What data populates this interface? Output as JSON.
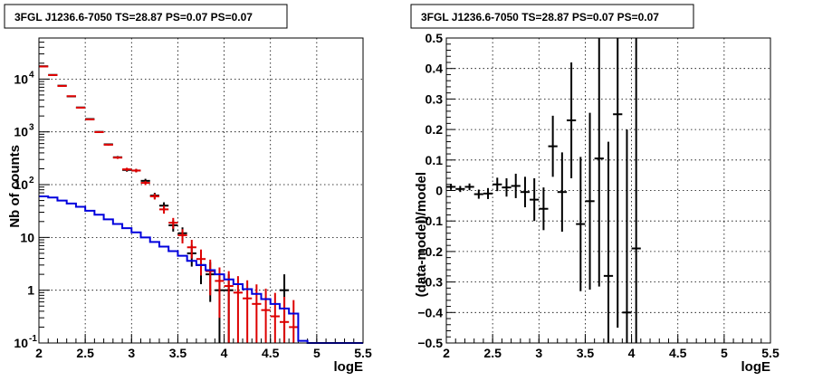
{
  "chart_data": [
    {
      "type": "histogram",
      "title": "3FGL J1236.6-7050 TS=28.87 PS=0.07 PS=0.07",
      "xlabel": "logE",
      "ylabel": "Nb of counts",
      "xlim": [
        2,
        5.5
      ],
      "ylim": [
        0.1,
        60000
      ],
      "yscale": "log",
      "grid": true,
      "x_ticks": [
        "2",
        "2.5",
        "3",
        "3.5",
        "4",
        "4.5",
        "5",
        "5.5"
      ],
      "y_ticks": [
        {
          "value": 0.1,
          "label": "10",
          "sup": "-1"
        },
        {
          "value": 1,
          "label": "1",
          "sup": ""
        },
        {
          "value": 10,
          "label": "10",
          "sup": ""
        },
        {
          "value": 100,
          "label": "10",
          "sup": "2"
        },
        {
          "value": 1000,
          "label": "10",
          "sup": "3"
        },
        {
          "value": 10000,
          "label": "10",
          "sup": "4"
        }
      ],
      "bin_width": 0.1,
      "series": [
        {
          "role": "data",
          "color": "#000000",
          "points": [
            {
              "x": 2.05,
              "y": 17500,
              "err": 130
            },
            {
              "x": 2.15,
              "y": 12000,
              "err": 110
            },
            {
              "x": 2.25,
              "y": 7500,
              "err": 87
            },
            {
              "x": 2.35,
              "y": 4700,
              "err": 69
            },
            {
              "x": 2.45,
              "y": 2900,
              "err": 54
            },
            {
              "x": 2.55,
              "y": 1750,
              "err": 42
            },
            {
              "x": 2.65,
              "y": 1000,
              "err": 32
            },
            {
              "x": 2.75,
              "y": 580,
              "err": 24
            },
            {
              "x": 2.85,
              "y": 330,
              "err": 18
            },
            {
              "x": 2.95,
              "y": 190,
              "err": 14
            },
            {
              "x": 3.05,
              "y": 185,
              "err": 14
            },
            {
              "x": 3.15,
              "y": 118,
              "err": 11
            },
            {
              "x": 3.25,
              "y": 62,
              "err": 8
            },
            {
              "x": 3.35,
              "y": 40,
              "err": 6.3
            },
            {
              "x": 3.45,
              "y": 17,
              "err": 4.1
            },
            {
              "x": 3.55,
              "y": 12,
              "err": 3.5
            },
            {
              "x": 3.65,
              "y": 5,
              "err": 2.2
            },
            {
              "x": 3.75,
              "y": 3,
              "err": 1.7
            },
            {
              "x": 3.85,
              "y": 2,
              "err": 1.4
            },
            {
              "x": 3.95,
              "y": 1,
              "err": 1
            },
            {
              "x": 4.05,
              "y": 1,
              "err": 1
            },
            {
              "x": 4.65,
              "y": 1,
              "err": 1
            }
          ]
        },
        {
          "role": "model",
          "color": "#dd0000",
          "points": [
            {
              "x": 2.05,
              "y": 17300,
              "err": 130
            },
            {
              "x": 2.15,
              "y": 11900,
              "err": 110
            },
            {
              "x": 2.25,
              "y": 7400,
              "err": 87
            },
            {
              "x": 2.35,
              "y": 4750,
              "err": 69
            },
            {
              "x": 2.45,
              "y": 2870,
              "err": 54
            },
            {
              "x": 2.55,
              "y": 1720,
              "err": 42
            },
            {
              "x": 2.65,
              "y": 990,
              "err": 32
            },
            {
              "x": 2.75,
              "y": 570,
              "err": 24
            },
            {
              "x": 2.85,
              "y": 325,
              "err": 18
            },
            {
              "x": 2.95,
              "y": 195,
              "err": 14
            },
            {
              "x": 3.05,
              "y": 185,
              "err": 14
            },
            {
              "x": 3.15,
              "y": 108,
              "err": 10
            },
            {
              "x": 3.25,
              "y": 60,
              "err": 7.7
            },
            {
              "x": 3.35,
              "y": 34,
              "err": 5.8
            },
            {
              "x": 3.45,
              "y": 19,
              "err": 4.4
            },
            {
              "x": 3.55,
              "y": 11,
              "err": 3.3
            },
            {
              "x": 3.65,
              "y": 6.5,
              "err": 2.5
            },
            {
              "x": 3.75,
              "y": 3.9,
              "err": 2
            },
            {
              "x": 3.85,
              "y": 2.3,
              "err": 1.5
            },
            {
              "x": 3.95,
              "y": 1.5,
              "err": 1.2
            },
            {
              "x": 4.05,
              "y": 1.2,
              "err": 1.1
            },
            {
              "x": 4.15,
              "y": 0.9,
              "err": 0.95
            },
            {
              "x": 4.25,
              "y": 0.7,
              "err": 0.84
            },
            {
              "x": 4.35,
              "y": 0.55,
              "err": 0.74
            },
            {
              "x": 4.45,
              "y": 0.42,
              "err": 0.65
            },
            {
              "x": 4.55,
              "y": 0.32,
              "err": 0.57
            },
            {
              "x": 4.65,
              "y": 0.25,
              "err": 0.5
            },
            {
              "x": 4.75,
              "y": 0.2,
              "err": 0.45
            }
          ]
        },
        {
          "role": "source",
          "color": "#0000dd",
          "step": true,
          "x_edges": [
            2.0,
            2.1,
            2.2,
            2.3,
            2.4,
            2.5,
            2.6,
            2.7,
            2.8,
            2.9,
            3.0,
            3.1,
            3.2,
            3.3,
            3.4,
            3.5,
            3.6,
            3.7,
            3.8,
            3.9,
            4.0,
            4.1,
            4.2,
            4.3,
            4.4,
            4.5,
            4.6,
            4.7,
            4.8,
            4.9,
            5.0,
            5.1,
            5.2,
            5.3,
            5.4,
            5.5
          ],
          "values": [
            60,
            57,
            50,
            44,
            38,
            32,
            27,
            22,
            18,
            15,
            12.5,
            10,
            8.2,
            6.7,
            5.5,
            4.5,
            3.6,
            3.0,
            2.4,
            2.0,
            1.6,
            1.3,
            1.05,
            0.85,
            0.68,
            0.55,
            0.45,
            0.36,
            0.11,
            0.1,
            0.1,
            0.1,
            0.1,
            0.1,
            0.1
          ]
        }
      ]
    },
    {
      "type": "scatter",
      "title": "3FGL J1236.6-7050 TS=28.87 PS=0.07 PS=0.07",
      "xlabel": "logE",
      "ylabel": "(data-model)/model",
      "xlim": [
        2,
        5.5
      ],
      "ylim": [
        -0.5,
        0.5
      ],
      "grid": true,
      "x_ticks": [
        "2",
        "2.5",
        "3",
        "3.5",
        "4",
        "4.5",
        "5",
        "5.5"
      ],
      "y_ticks": [
        "−0.5",
        "−0.4",
        "−0.3",
        "−0.2",
        "−0.1",
        "0",
        "0.1",
        "0.2",
        "0.3",
        "0.4",
        "0.5"
      ],
      "bin_width": 0.1,
      "points": [
        {
          "x": 2.05,
          "y": 0.012,
          "err": 0.01
        },
        {
          "x": 2.15,
          "y": 0.005,
          "err": 0.01
        },
        {
          "x": 2.25,
          "y": 0.012,
          "err": 0.011
        },
        {
          "x": 2.35,
          "y": -0.012,
          "err": 0.015
        },
        {
          "x": 2.45,
          "y": -0.01,
          "err": 0.018
        },
        {
          "x": 2.55,
          "y": 0.02,
          "err": 0.022
        },
        {
          "x": 2.65,
          "y": 0.01,
          "err": 0.03
        },
        {
          "x": 2.75,
          "y": 0.015,
          "err": 0.04
        },
        {
          "x": 2.85,
          "y": -0.005,
          "err": 0.05
        },
        {
          "x": 2.95,
          "y": -0.03,
          "err": 0.07
        },
        {
          "x": 3.05,
          "y": -0.06,
          "err": 0.07
        },
        {
          "x": 3.15,
          "y": 0.145,
          "err": 0.1
        },
        {
          "x": 3.25,
          "y": -0.005,
          "err": 0.13
        },
        {
          "x": 3.35,
          "y": 0.23,
          "err": 0.19
        },
        {
          "x": 3.45,
          "y": -0.11,
          "err": 0.22
        },
        {
          "x": 3.55,
          "y": -0.035,
          "err": 0.29
        },
        {
          "x": 3.65,
          "y": 0.105,
          "err": 0.42
        },
        {
          "x": 3.75,
          "y": -0.28,
          "err": 0.44
        },
        {
          "x": 3.85,
          "y": 0.25,
          "err": 0.7
        },
        {
          "x": 3.95,
          "y": -0.4,
          "err": 0.6
        },
        {
          "x": 4.05,
          "y": -0.19,
          "err": 0.85
        }
      ]
    }
  ]
}
